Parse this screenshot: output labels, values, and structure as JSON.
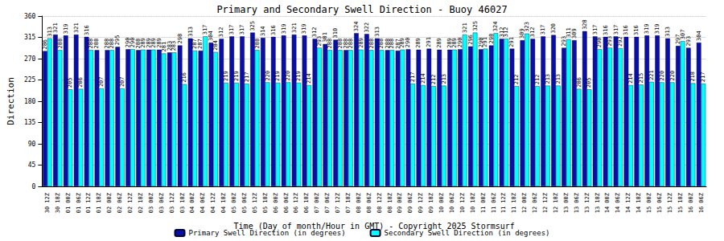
{
  "chart_data": {
    "type": "bar",
    "title": "Primary and Secondary Swell Direction - Buoy 46027",
    "x_label": "Time (Day of month/Hour in GMT) - Copyright 2025 Stormsurf",
    "y_label": "Direction",
    "categories": [
      "30 12Z",
      "30 18Z",
      "01 00Z",
      "01 06Z",
      "01 12Z",
      "01 18Z",
      "02 00Z",
      "02 06Z",
      "02 12Z",
      "02 18Z",
      "03 00Z",
      "03 06Z",
      "03 12Z",
      "03 18Z",
      "04 00Z",
      "04 06Z",
      "04 12Z",
      "04 18Z",
      "05 00Z",
      "05 06Z",
      "05 12Z",
      "05 18Z",
      "06 00Z",
      "06 06Z",
      "06 12Z",
      "06 18Z",
      "07 00Z",
      "07 06Z",
      "07 12Z",
      "07 18Z",
      "08 00Z",
      "08 06Z",
      "08 12Z",
      "08 18Z",
      "09 00Z",
      "09 06Z",
      "09 12Z",
      "09 18Z",
      "10 00Z",
      "10 06Z",
      "10 12Z",
      "10 18Z",
      "11 00Z",
      "11 06Z",
      "11 12Z",
      "11 18Z",
      "12 00Z",
      "12 06Z",
      "12 12Z",
      "12 18Z",
      "13 00Z",
      "13 06Z",
      "13 12Z",
      "13 18Z",
      "14 00Z",
      "14 06Z",
      "14 12Z",
      "14 18Z",
      "15 00Z",
      "15 06Z",
      "15 12Z",
      "15 18Z",
      "16 00Z",
      "16 06Z"
    ],
    "series": [
      {
        "name": "Primary Swell Direction (in degrees)",
        "color": "#0a0ea8",
        "values": [
          286,
          321,
          319,
          321,
          316,
          288,
          288,
          295,
          290,
          288,
          289,
          289,
          283,
          298,
          313,
          287,
          304,
          312,
          317,
          317,
          325,
          314,
          316,
          319,
          321,
          319,
          312,
          301,
          310,
          288,
          324,
          322,
          313,
          288,
          287,
          290,
          289,
          291,
          289,
          289,
          290,
          296,
          290,
          298,
          312,
          291,
          309,
          312,
          317,
          320,
          293,
          309,
          328,
          317,
          316,
          317,
          316,
          316,
          319,
          319,
          313,
          297,
          293,
          304
        ]
      },
      {
        "name": "Secondary Swell Direction (in degrees)",
        "color": "#00ffff",
        "values": [
          313,
          288,
          205,
          206,
          288,
          207,
          288,
          207,
          290,
          289,
          289,
          281,
          283,
          216,
          287,
          317,
          284,
          219,
          219,
          217,
          288,
          220,
          219,
          220,
          219,
          214,
          293,
          288,
          288,
          288,
          289,
          288,
          288,
          288,
          289,
          217,
          214,
          212,
          213,
          289,
          321,
          325,
          291,
          324,
          312,
          212,
          323,
          212,
          213,
          213,
          311,
          206,
          205,
          290,
          293,
          292,
          214,
          215,
          221,
          220,
          220,
          307,
          218,
          217
        ]
      }
    ],
    "ylim": [
      0,
      360
    ],
    "yticks": [
      0,
      45,
      90,
      135,
      180,
      225,
      270,
      315,
      360
    ],
    "grid": true,
    "legend": "bottom",
    "data_labels": true
  }
}
